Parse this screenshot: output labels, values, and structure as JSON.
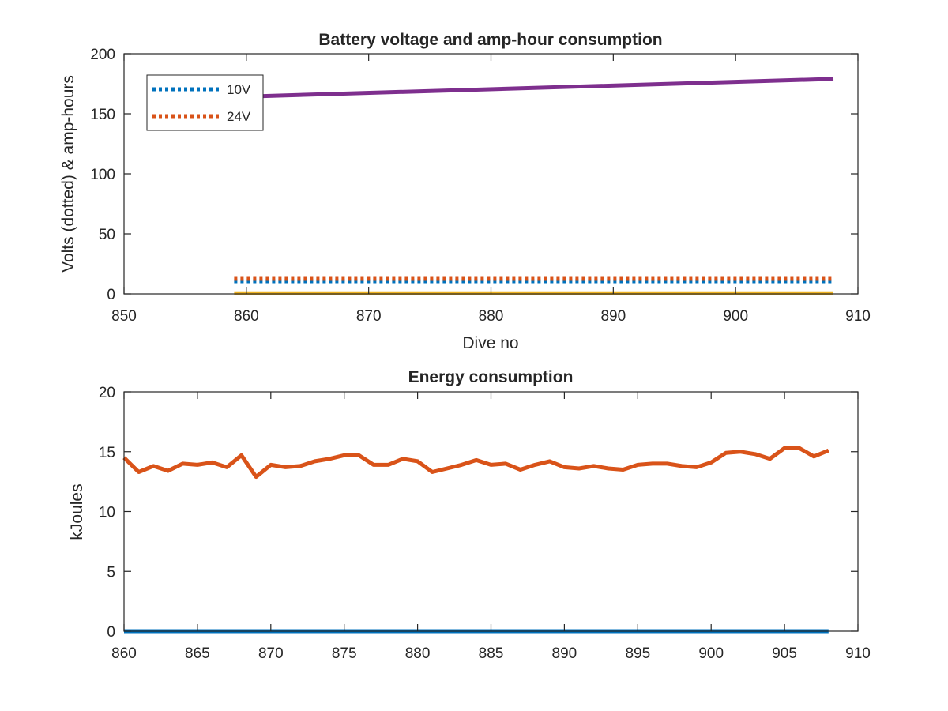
{
  "chart_data": [
    {
      "type": "line",
      "title": "Battery voltage and amp-hour consumption",
      "xlabel": "Dive no",
      "ylabel": "Volts (dotted) & amp-hours",
      "xlim": [
        850,
        910
      ],
      "ylim": [
        0,
        200
      ],
      "xticks": [
        850,
        860,
        870,
        880,
        890,
        900,
        910
      ],
      "yticks": [
        0,
        50,
        100,
        150,
        200
      ],
      "grid": false,
      "legend": "top-left",
      "series": [
        {
          "name": "10V",
          "style": "dotted",
          "color": "#0072BD",
          "x": [
            859,
            908
          ],
          "y": [
            10.5,
            10.5
          ]
        },
        {
          "name": "24V",
          "style": "dotted",
          "color": "#D95319",
          "x": [
            859,
            908
          ],
          "y": [
            12.5,
            12.5
          ]
        },
        {
          "style": "solid",
          "color": "#EDB120",
          "x": [
            859,
            908
          ],
          "y": [
            0.5,
            0.5
          ]
        },
        {
          "style": "solid",
          "color": "#7E2F8E",
          "x": [
            859,
            908
          ],
          "y": [
            164,
            179
          ]
        }
      ]
    },
    {
      "type": "line",
      "title": "Energy consumption",
      "xlabel": "",
      "ylabel": "kJoules",
      "xlim": [
        860,
        910
      ],
      "ylim": [
        0,
        20
      ],
      "xticks": [
        860,
        865,
        870,
        875,
        880,
        885,
        890,
        895,
        900,
        905,
        910
      ],
      "yticks": [
        0,
        5,
        10,
        15,
        20
      ],
      "grid": false,
      "series": [
        {
          "style": "solid",
          "color": "#D95319",
          "x": [
            860,
            861,
            862,
            863,
            864,
            865,
            866,
            867,
            868,
            869,
            870,
            871,
            872,
            873,
            874,
            875,
            876,
            877,
            878,
            879,
            880,
            881,
            882,
            883,
            884,
            885,
            886,
            887,
            888,
            889,
            890,
            891,
            892,
            893,
            894,
            895,
            896,
            897,
            898,
            899,
            900,
            901,
            902,
            903,
            904,
            905,
            906,
            907,
            908
          ],
          "y": [
            14.5,
            13.3,
            13.8,
            13.4,
            14.0,
            13.9,
            14.1,
            13.7,
            14.7,
            12.9,
            13.9,
            13.7,
            13.8,
            14.2,
            14.4,
            14.7,
            14.7,
            13.9,
            13.9,
            14.4,
            14.2,
            13.3,
            13.6,
            13.9,
            14.3,
            13.9,
            14.0,
            13.5,
            13.9,
            14.2,
            13.7,
            13.6,
            13.8,
            13.6,
            13.5,
            13.9,
            14.0,
            14.0,
            13.8,
            13.7,
            14.1,
            14.9,
            15.0,
            14.8,
            14.4,
            15.3,
            15.3,
            14.6,
            15.1
          ]
        },
        {
          "style": "solid",
          "color": "#0072BD",
          "x": [
            860,
            908
          ],
          "y": [
            0,
            0
          ]
        }
      ]
    }
  ]
}
